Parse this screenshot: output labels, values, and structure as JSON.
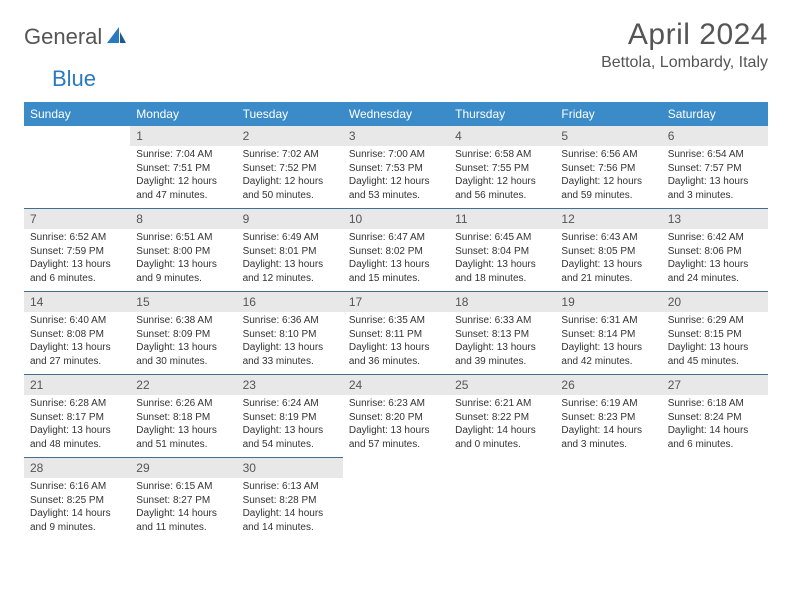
{
  "logo": {
    "text1": "General",
    "text2": "Blue",
    "color1": "#555555",
    "color2": "#2a7abf"
  },
  "title": "April 2024",
  "location": "Bettola, Lombardy, Italy",
  "header_bg": "#3b8bc9",
  "header_fg": "#ffffff",
  "daynum_bg": "#e8e8e8",
  "row_border": "#40708f",
  "weekdays": [
    "Sunday",
    "Monday",
    "Tuesday",
    "Wednesday",
    "Thursday",
    "Friday",
    "Saturday"
  ],
  "first_weekday_index": 1,
  "days": [
    {
      "n": 1,
      "sunrise": "7:04 AM",
      "sunset": "7:51 PM",
      "daylight": "12 hours and 47 minutes."
    },
    {
      "n": 2,
      "sunrise": "7:02 AM",
      "sunset": "7:52 PM",
      "daylight": "12 hours and 50 minutes."
    },
    {
      "n": 3,
      "sunrise": "7:00 AM",
      "sunset": "7:53 PM",
      "daylight": "12 hours and 53 minutes."
    },
    {
      "n": 4,
      "sunrise": "6:58 AM",
      "sunset": "7:55 PM",
      "daylight": "12 hours and 56 minutes."
    },
    {
      "n": 5,
      "sunrise": "6:56 AM",
      "sunset": "7:56 PM",
      "daylight": "12 hours and 59 minutes."
    },
    {
      "n": 6,
      "sunrise": "6:54 AM",
      "sunset": "7:57 PM",
      "daylight": "13 hours and 3 minutes."
    },
    {
      "n": 7,
      "sunrise": "6:52 AM",
      "sunset": "7:59 PM",
      "daylight": "13 hours and 6 minutes."
    },
    {
      "n": 8,
      "sunrise": "6:51 AM",
      "sunset": "8:00 PM",
      "daylight": "13 hours and 9 minutes."
    },
    {
      "n": 9,
      "sunrise": "6:49 AM",
      "sunset": "8:01 PM",
      "daylight": "13 hours and 12 minutes."
    },
    {
      "n": 10,
      "sunrise": "6:47 AM",
      "sunset": "8:02 PM",
      "daylight": "13 hours and 15 minutes."
    },
    {
      "n": 11,
      "sunrise": "6:45 AM",
      "sunset": "8:04 PM",
      "daylight": "13 hours and 18 minutes."
    },
    {
      "n": 12,
      "sunrise": "6:43 AM",
      "sunset": "8:05 PM",
      "daylight": "13 hours and 21 minutes."
    },
    {
      "n": 13,
      "sunrise": "6:42 AM",
      "sunset": "8:06 PM",
      "daylight": "13 hours and 24 minutes."
    },
    {
      "n": 14,
      "sunrise": "6:40 AM",
      "sunset": "8:08 PM",
      "daylight": "13 hours and 27 minutes."
    },
    {
      "n": 15,
      "sunrise": "6:38 AM",
      "sunset": "8:09 PM",
      "daylight": "13 hours and 30 minutes."
    },
    {
      "n": 16,
      "sunrise": "6:36 AM",
      "sunset": "8:10 PM",
      "daylight": "13 hours and 33 minutes."
    },
    {
      "n": 17,
      "sunrise": "6:35 AM",
      "sunset": "8:11 PM",
      "daylight": "13 hours and 36 minutes."
    },
    {
      "n": 18,
      "sunrise": "6:33 AM",
      "sunset": "8:13 PM",
      "daylight": "13 hours and 39 minutes."
    },
    {
      "n": 19,
      "sunrise": "6:31 AM",
      "sunset": "8:14 PM",
      "daylight": "13 hours and 42 minutes."
    },
    {
      "n": 20,
      "sunrise": "6:29 AM",
      "sunset": "8:15 PM",
      "daylight": "13 hours and 45 minutes."
    },
    {
      "n": 21,
      "sunrise": "6:28 AM",
      "sunset": "8:17 PM",
      "daylight": "13 hours and 48 minutes."
    },
    {
      "n": 22,
      "sunrise": "6:26 AM",
      "sunset": "8:18 PM",
      "daylight": "13 hours and 51 minutes."
    },
    {
      "n": 23,
      "sunrise": "6:24 AM",
      "sunset": "8:19 PM",
      "daylight": "13 hours and 54 minutes."
    },
    {
      "n": 24,
      "sunrise": "6:23 AM",
      "sunset": "8:20 PM",
      "daylight": "13 hours and 57 minutes."
    },
    {
      "n": 25,
      "sunrise": "6:21 AM",
      "sunset": "8:22 PM",
      "daylight": "14 hours and 0 minutes."
    },
    {
      "n": 26,
      "sunrise": "6:19 AM",
      "sunset": "8:23 PM",
      "daylight": "14 hours and 3 minutes."
    },
    {
      "n": 27,
      "sunrise": "6:18 AM",
      "sunset": "8:24 PM",
      "daylight": "14 hours and 6 minutes."
    },
    {
      "n": 28,
      "sunrise": "6:16 AM",
      "sunset": "8:25 PM",
      "daylight": "14 hours and 9 minutes."
    },
    {
      "n": 29,
      "sunrise": "6:15 AM",
      "sunset": "8:27 PM",
      "daylight": "14 hours and 11 minutes."
    },
    {
      "n": 30,
      "sunrise": "6:13 AM",
      "sunset": "8:28 PM",
      "daylight": "14 hours and 14 minutes."
    }
  ],
  "labels": {
    "sunrise": "Sunrise:",
    "sunset": "Sunset:",
    "daylight": "Daylight:"
  }
}
